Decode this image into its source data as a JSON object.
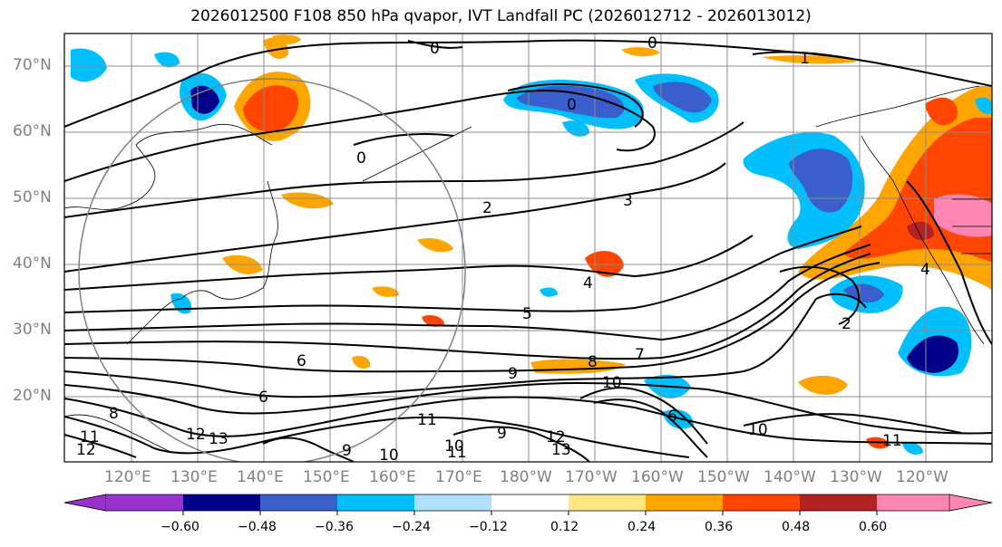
{
  "title": "2026012500 F108 850 hPa qvapor, IVT Landfall PC (2026012712 - 2026013012)",
  "map": {
    "lat_labels": [
      "70°N",
      "60°N",
      "50°N",
      "40°N",
      "30°N",
      "20°N"
    ],
    "lon_labels": [
      "120°E",
      "130°E",
      "140°E",
      "150°E",
      "160°E",
      "170°E",
      "180°W",
      "170°W",
      "160°W",
      "150°W",
      "140°W",
      "130°W",
      "120°W"
    ],
    "contour_labels": [
      {
        "text": "0"
      },
      {
        "text": "0"
      },
      {
        "text": "1"
      },
      {
        "text": "0"
      },
      {
        "text": "0"
      },
      {
        "text": "2"
      },
      {
        "text": "3"
      },
      {
        "text": "2"
      },
      {
        "text": "4"
      },
      {
        "text": "4"
      },
      {
        "text": "5"
      },
      {
        "text": "6"
      },
      {
        "text": "6"
      },
      {
        "text": "7"
      },
      {
        "text": "8"
      },
      {
        "text": "9"
      },
      {
        "text": "10"
      },
      {
        "text": "10"
      },
      {
        "text": "11"
      },
      {
        "text": "11"
      },
      {
        "text": "12"
      },
      {
        "text": "13"
      },
      {
        "text": "13"
      },
      {
        "text": "12"
      },
      {
        "text": "8"
      },
      {
        "text": "9"
      },
      {
        "text": "10"
      },
      {
        "text": "10"
      },
      {
        "text": "11"
      },
      {
        "text": "11"
      },
      {
        "text": "6"
      },
      {
        "text": "12"
      },
      {
        "text": "9"
      }
    ]
  },
  "colorbar": {
    "ticks": [
      "−0.60",
      "−0.48",
      "−0.36",
      "−0.24",
      "−0.12",
      "0.12",
      "0.24",
      "0.36",
      "0.48",
      "0.60"
    ],
    "colors": [
      "#9932cc",
      "#00008b",
      "#3a5fcd",
      "#00bfff",
      "#b0e0ff",
      "#ffffff",
      "#ffe680",
      "#ffa500",
      "#ff4500",
      "#b22222",
      "#ff85b3"
    ]
  }
}
